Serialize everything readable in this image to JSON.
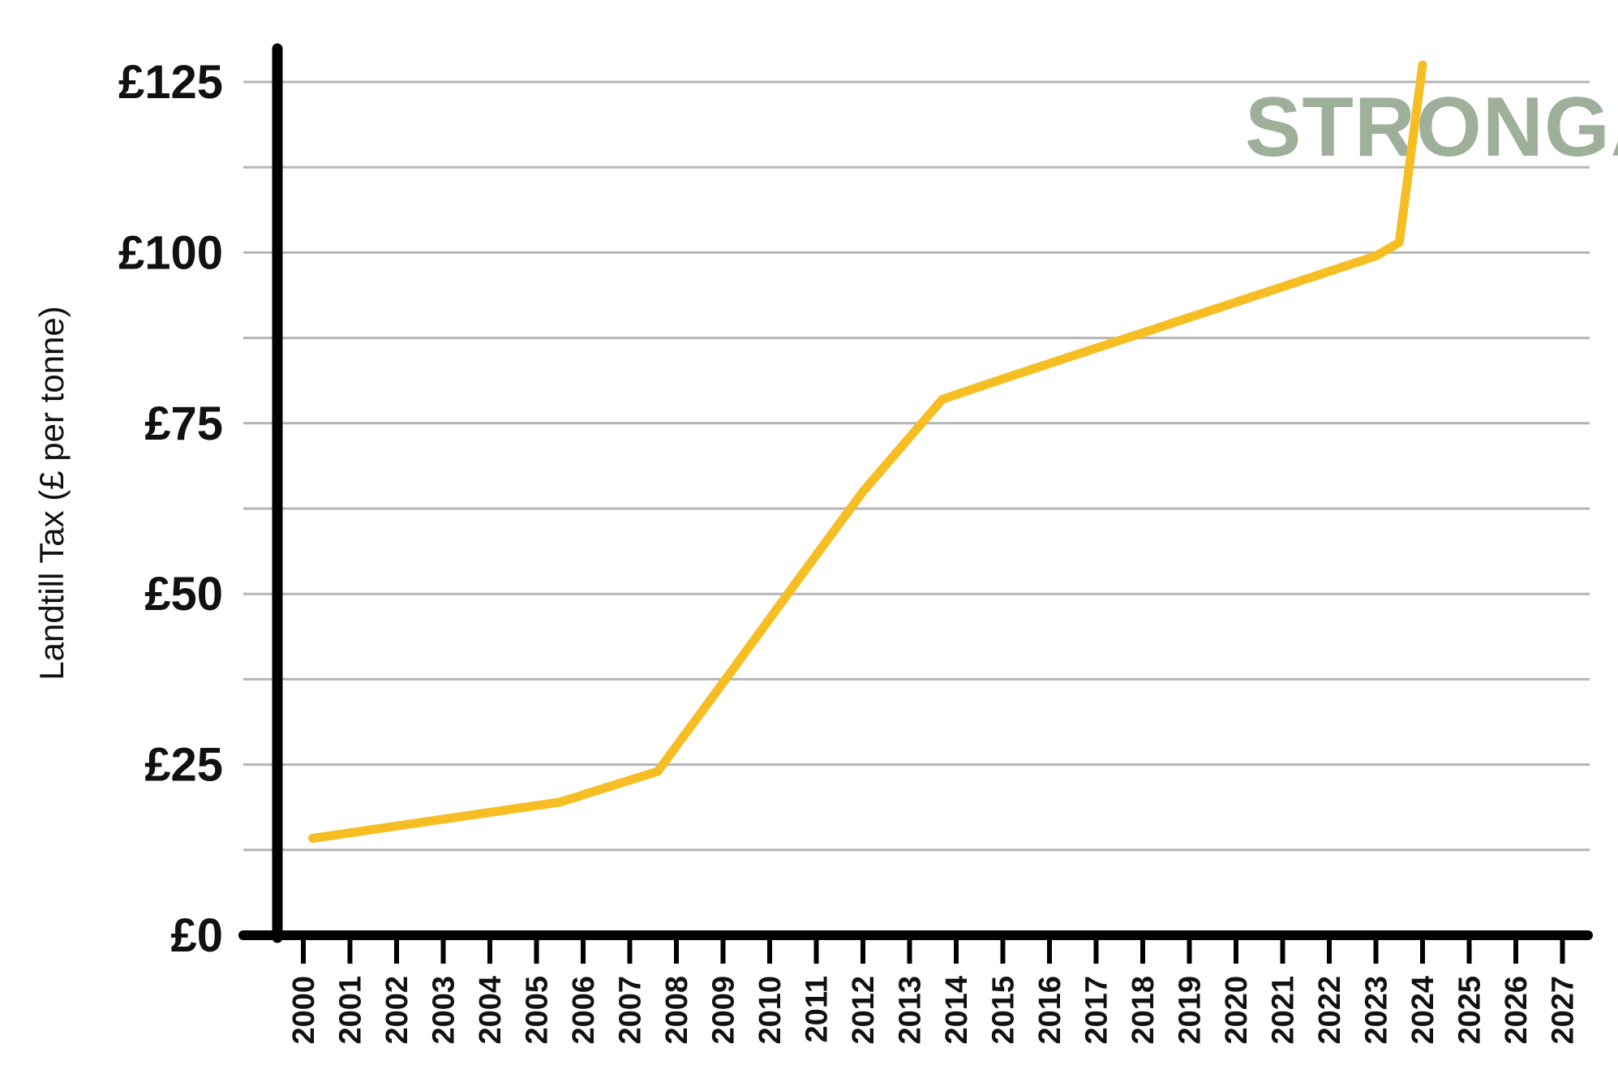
{
  "chart_data": {
    "type": "line",
    "title": "",
    "xlabel": "",
    "ylabel": "Landtill Tax (£ per tonne)",
    "watermark": "STRONGA",
    "ylim": [
      0,
      125
    ],
    "xlim": [
      2000,
      2027
    ],
    "y_ticks": [
      0,
      25,
      50,
      75,
      100,
      125
    ],
    "y_tick_labels": [
      "£0",
      "£25",
      "£50",
      "£75",
      "£100",
      "£125"
    ],
    "y_gridlines": [
      12.5,
      25,
      37.5,
      50,
      62.5,
      75,
      87.5,
      100,
      112.5,
      125
    ],
    "x_tick_labels": [
      "2000",
      "2001",
      "2002",
      "2003",
      "2004",
      "2005",
      "2006",
      "2007",
      "2008",
      "2009",
      "2010",
      "2011",
      "2012",
      "2013",
      "2014",
      "2015",
      "2016",
      "2017",
      "2018",
      "2019",
      "2020",
      "2021",
      "2022",
      "2023",
      "2024",
      "2025",
      "2026",
      "2027"
    ],
    "grid": true,
    "series": [
      {
        "x": [
          2000.2,
          2002,
          2004,
          2005.5,
          2007.6,
          2009,
          2010.6,
          2012,
          2013.7,
          2015,
          2017,
          2019,
          2021,
          2023,
          2023.5,
          2024
        ],
        "y": [
          14.2,
          16,
          18,
          19.5,
          24,
          37,
          52,
          65,
          78.5,
          81.5,
          86,
          90.5,
          95,
          99.5,
          101.5,
          127.5
        ]
      }
    ],
    "colors": {
      "line": "#F6BE22",
      "axis": "#000000",
      "grid": "#B5B5B5",
      "watermark": "#9EAF9A"
    }
  }
}
